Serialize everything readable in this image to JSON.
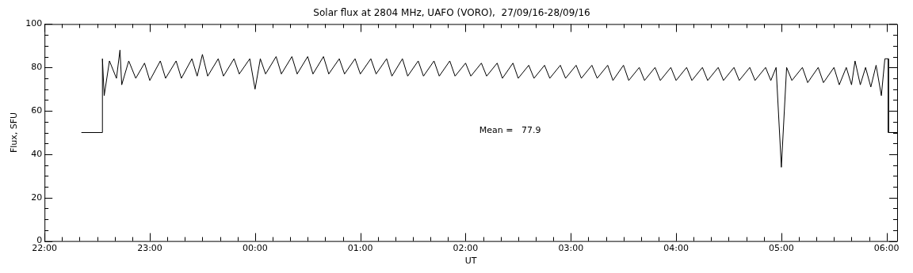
{
  "chart_data": {
    "type": "line",
    "title": "Solar flux at 2804 MHz, UAFO (VORO),  27/09/16-28/09/16",
    "xlabel": "UT",
    "ylabel": "Flux, SFU",
    "annotations": [
      "Mean =   77.9"
    ],
    "xlim": [
      "--09-27T22:00",
      "--09-28T06:06"
    ],
    "ylim": [
      0,
      100
    ],
    "xticks": [
      {
        "value": "--09-27T22:00",
        "label": "22:00"
      },
      {
        "value": "--09-27T22:10",
        "label": null
      },
      {
        "value": "--09-27T22:20",
        "label": null
      },
      {
        "value": "--09-27T22:30",
        "label": null
      },
      {
        "value": "--09-27T22:40",
        "label": null
      },
      {
        "value": "--09-27T22:50",
        "label": null
      },
      {
        "value": "--09-27T23:00",
        "label": "23:00"
      },
      {
        "value": "--09-27T23:10",
        "label": null
      },
      {
        "value": "--09-27T23:20",
        "label": null
      },
      {
        "value": "--09-27T23:30",
        "label": null
      },
      {
        "value": "--09-27T23:40",
        "label": null
      },
      {
        "value": "--09-27T23:50",
        "label": null
      },
      {
        "value": "--09-28T00:00",
        "label": "00:00"
      },
      {
        "value": "--09-28T00:10",
        "label": null
      },
      {
        "value": "--09-28T00:20",
        "label": null
      },
      {
        "value": "--09-28T00:30",
        "label": null
      },
      {
        "value": "--09-28T00:40",
        "label": null
      },
      {
        "value": "--09-28T00:50",
        "label": null
      },
      {
        "value": "--09-28T01:00",
        "label": "01:00"
      },
      {
        "value": "--09-28T01:10",
        "label": null
      },
      {
        "value": "--09-28T01:20",
        "label": null
      },
      {
        "value": "--09-28T01:30",
        "label": null
      },
      {
        "value": "--09-28T01:40",
        "label": null
      },
      {
        "value": "--09-28T01:50",
        "label": null
      },
      {
        "value": "--09-28T02:00",
        "label": "02:00"
      },
      {
        "value": "--09-28T02:10",
        "label": null
      },
      {
        "value": "--09-28T02:20",
        "label": null
      },
      {
        "value": "--09-28T02:30",
        "label": null
      },
      {
        "value": "--09-28T02:40",
        "label": null
      },
      {
        "value": "--09-28T02:50",
        "label": null
      },
      {
        "value": "--09-28T03:00",
        "label": "03:00"
      },
      {
        "value": "--09-28T03:10",
        "label": null
      },
      {
        "value": "--09-28T03:20",
        "label": null
      },
      {
        "value": "--09-28T03:30",
        "label": null
      },
      {
        "value": "--09-28T03:40",
        "label": null
      },
      {
        "value": "--09-28T03:50",
        "label": null
      },
      {
        "value": "--09-28T04:00",
        "label": "04:00"
      },
      {
        "value": "--09-28T04:10",
        "label": null
      },
      {
        "value": "--09-28T04:20",
        "label": null
      },
      {
        "value": "--09-28T04:30",
        "label": null
      },
      {
        "value": "--09-28T04:40",
        "label": null
      },
      {
        "value": "--09-28T04:50",
        "label": null
      },
      {
        "value": "--09-28T05:00",
        "label": "05:00"
      },
      {
        "value": "--09-28T05:10",
        "label": null
      },
      {
        "value": "--09-28T05:20",
        "label": null
      },
      {
        "value": "--09-28T05:30",
        "label": null
      },
      {
        "value": "--09-28T05:40",
        "label": null
      },
      {
        "value": "--09-28T05:50",
        "label": null
      },
      {
        "value": "--09-28T06:00",
        "label": "06:00"
      }
    ],
    "yticks": [
      0,
      {
        "value": 5,
        "label": null
      },
      {
        "value": 10,
        "label": null
      },
      {
        "value": 15,
        "label": null
      },
      20,
      {
        "value": 25,
        "label": null
      },
      {
        "value": 30,
        "label": null
      },
      {
        "value": 35,
        "label": null
      },
      40,
      {
        "value": 45,
        "label": null
      },
      {
        "value": 50,
        "label": null
      },
      {
        "value": 55,
        "label": null
      },
      60,
      {
        "value": 65,
        "label": null
      },
      {
        "value": 70,
        "label": null
      },
      {
        "value": 75,
        "label": null
      },
      80,
      {
        "value": 85,
        "label": null
      },
      {
        "value": 90,
        "label": null
      },
      {
        "value": 95,
        "label": null
      },
      100
    ],
    "grid": false,
    "legend": false,
    "marker": "none",
    "line_style": "solid",
    "series": [
      {
        "color": "#000000",
        "x": [
          "--09-27T22:21",
          "--09-27T22:33",
          "--09-27T22:33",
          "--09-27T22:34",
          "--09-27T22:37",
          "--09-27T22:41",
          "--09-27T22:43",
          "--09-27T22:44",
          "--09-27T22:48",
          "--09-27T22:52",
          "--09-27T22:57",
          "--09-27T23:00",
          "--09-27T23:06",
          "--09-27T23:09",
          "--09-27T23:15",
          "--09-27T23:18",
          "--09-27T23:24",
          "--09-27T23:27",
          "--09-27T23:30",
          "--09-27T23:33",
          "--09-27T23:39",
          "--09-27T23:42",
          "--09-27T23:48",
          "--09-27T23:51",
          "--09-27T23:57",
          "--09-28T00:00",
          "--09-28T00:03",
          "--09-28T00:06",
          "--09-28T00:12",
          "--09-28T00:15",
          "--09-28T00:21",
          "--09-28T00:24",
          "--09-28T00:30",
          "--09-28T00:33",
          "--09-28T00:39",
          "--09-28T00:42",
          "--09-28T00:48",
          "--09-28T00:51",
          "--09-28T00:57",
          "--09-28T01:00",
          "--09-28T01:06",
          "--09-28T01:09",
          "--09-28T01:15",
          "--09-28T01:18",
          "--09-28T01:24",
          "--09-28T01:27",
          "--09-28T01:33",
          "--09-28T01:36",
          "--09-28T01:42",
          "--09-28T01:45",
          "--09-28T01:51",
          "--09-28T01:54",
          "--09-28T02:00",
          "--09-28T02:03",
          "--09-28T02:09",
          "--09-28T02:12",
          "--09-28T02:18",
          "--09-28T02:21",
          "--09-28T02:27",
          "--09-28T02:30",
          "--09-28T02:36",
          "--09-28T02:39",
          "--09-28T02:45",
          "--09-28T02:48",
          "--09-28T02:54",
          "--09-28T02:57",
          "--09-28T03:03",
          "--09-28T03:06",
          "--09-28T03:12",
          "--09-28T03:15",
          "--09-28T03:21",
          "--09-28T03:24",
          "--09-28T03:30",
          "--09-28T03:33",
          "--09-28T03:39",
          "--09-28T03:42",
          "--09-28T03:48",
          "--09-28T03:51",
          "--09-28T03:57",
          "--09-28T04:00",
          "--09-28T04:06",
          "--09-28T04:09",
          "--09-28T04:15",
          "--09-28T04:18",
          "--09-28T04:24",
          "--09-28T04:27",
          "--09-28T04:33",
          "--09-28T04:36",
          "--09-28T04:42",
          "--09-28T04:45",
          "--09-28T04:51",
          "--09-28T04:54",
          "--09-28T04:57",
          "--09-28T05:00",
          "--09-28T05:03",
          "--09-28T05:06",
          "--09-28T05:12",
          "--09-28T05:15",
          "--09-28T05:21",
          "--09-28T05:24",
          "--09-28T05:30",
          "--09-28T05:33",
          "--09-28T05:37",
          "--09-28T05:40",
          "--09-28T05:42",
          "--09-28T05:45",
          "--09-28T05:48",
          "--09-28T05:51",
          "--09-28T05:54",
          "--09-28T05:57",
          "--09-28T05:59",
          "--09-28T06:01",
          "--09-28T06:01",
          "--09-28T06:06"
        ],
        "values": [
          50,
          50,
          84,
          67,
          83,
          75,
          88,
          72,
          83,
          75,
          82,
          74,
          83,
          75,
          83,
          75,
          84,
          76,
          86,
          76,
          84,
          76,
          84,
          77,
          84,
          70,
          84,
          77,
          85,
          77,
          85,
          77,
          85,
          77,
          85,
          77,
          84,
          77,
          84,
          77,
          84,
          77,
          84,
          76,
          84,
          76,
          83,
          76,
          83,
          76,
          83,
          76,
          82,
          76,
          82,
          76,
          82,
          75,
          82,
          75,
          81,
          75,
          81,
          75,
          81,
          75,
          81,
          75,
          81,
          75,
          81,
          74,
          81,
          74,
          80,
          74,
          80,
          74,
          80,
          74,
          80,
          74,
          80,
          74,
          80,
          74,
          80,
          74,
          80,
          74,
          80,
          74,
          80,
          34,
          80,
          74,
          80,
          73,
          80,
          73,
          80,
          72,
          80,
          72,
          83,
          72,
          80,
          71,
          81,
          67,
          84,
          84,
          50,
          50
        ]
      }
    ]
  }
}
